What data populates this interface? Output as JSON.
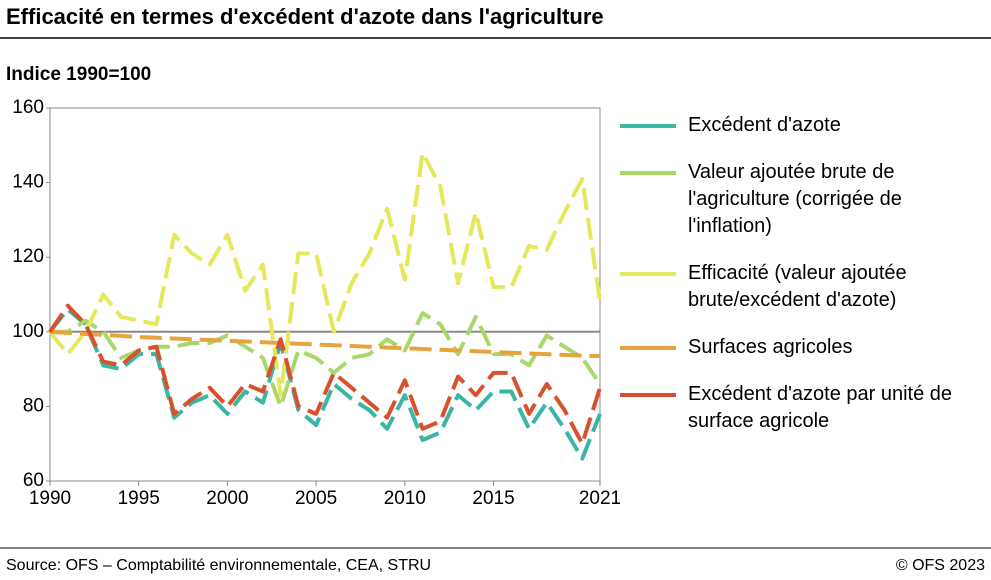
{
  "chart_data": {
    "type": "line",
    "title": "Efficacité en termes d'excédent d'azote dans l'agriculture",
    "y_label": "Indice 1990=100",
    "source": "Source: OFS – Comptabilité environnementale, CEA, STRU",
    "copyright": "© OFS 2023",
    "x": [
      1990,
      1991,
      1992,
      1993,
      1994,
      1995,
      1996,
      1997,
      1998,
      1999,
      2000,
      2001,
      2002,
      2003,
      2004,
      2005,
      2006,
      2007,
      2008,
      2009,
      2010,
      2011,
      2012,
      2013,
      2014,
      2015,
      2016,
      2017,
      2018,
      2019,
      2020,
      2021
    ],
    "xlim": [
      1990,
      2021
    ],
    "xticks": [
      1990,
      1995,
      2000,
      2005,
      2010,
      2015,
      2021
    ],
    "ylim": [
      60,
      160
    ],
    "yticks": [
      60,
      80,
      100,
      120,
      140,
      160
    ],
    "reference_line": 100,
    "dashed": true,
    "series": [
      {
        "name": "Excédent d'azote",
        "color": "#3bb5a4",
        "values": [
          100,
          106,
          102,
          91,
          90,
          94,
          94,
          77,
          81,
          83,
          78,
          84,
          81,
          97,
          79,
          75,
          86,
          82,
          79,
          74,
          83,
          71,
          73,
          83,
          79,
          84,
          84,
          74,
          81,
          74,
          66,
          78
        ]
      },
      {
        "name": "Valeur ajoutée brute de l'agriculture (corrigée de l'inflation)",
        "color": "#a9d86a",
        "values": [
          100,
          100,
          103,
          100,
          93,
          95,
          96,
          96,
          97,
          97,
          99,
          96,
          93,
          80,
          95,
          93,
          89,
          93,
          94,
          98,
          95,
          105,
          102,
          94,
          104,
          94,
          94,
          91,
          99,
          96,
          93,
          86
        ]
      },
      {
        "name": "Efficacité (valeur ajoutée brute/excédent d'azote)",
        "color": "#e4e85a",
        "values": [
          100,
          94,
          100,
          110,
          104,
          103,
          102,
          126,
          121,
          118,
          126,
          111,
          118,
          83,
          121,
          121,
          100,
          113,
          121,
          133,
          114,
          148,
          139,
          113,
          132,
          112,
          112,
          123,
          122,
          132,
          141,
          108
        ]
      },
      {
        "name": "Surfaces agricoles",
        "color": "#e8a33d",
        "values": [
          100,
          99.7,
          99.4,
          99.2,
          98.9,
          98.6,
          98.4,
          98.2,
          98,
          97.8,
          97.6,
          97.4,
          97.2,
          97,
          96.8,
          96.6,
          96.4,
          96.2,
          96,
          95.8,
          95.6,
          95.4,
          95.2,
          95,
          94.8,
          94.6,
          94.4,
          94.2,
          94,
          93.8,
          93.6,
          93.5
        ]
      },
      {
        "name": "Excédent d'azote par unité de surface agricole",
        "color": "#d9512c",
        "values": [
          100,
          107,
          102,
          92,
          91,
          95,
          96,
          78,
          82,
          85,
          80,
          86,
          84,
          98,
          80,
          78,
          89,
          85,
          81,
          77,
          87,
          74,
          76,
          88,
          83,
          89,
          89,
          78,
          86,
          79,
          70,
          85
        ]
      }
    ]
  }
}
